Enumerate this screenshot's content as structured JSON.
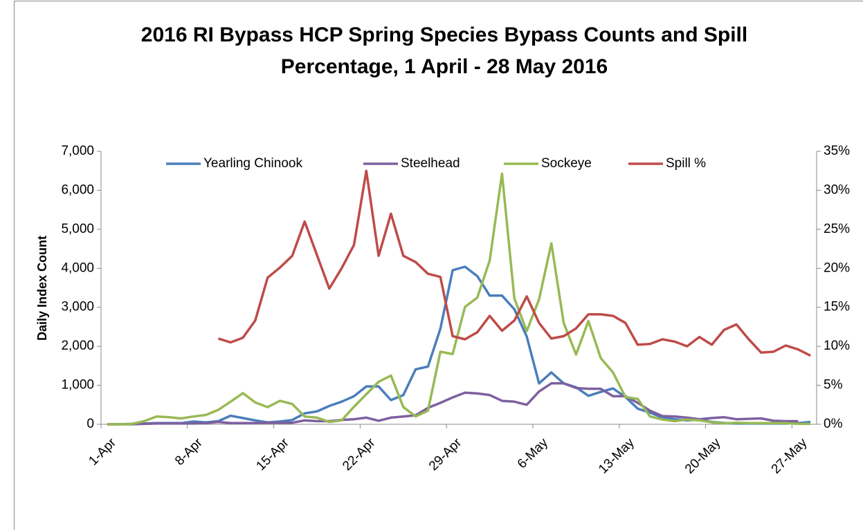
{
  "chart_data": {
    "type": "line",
    "title": "2016 RI Bypass HCP Spring Species Bypass Counts and Spill",
    "subtitle": "Percentage, 1 April - 28 May 2016",
    "y_label": "Daily Index Count",
    "categories": [
      "1-Apr",
      null,
      null,
      null,
      null,
      null,
      null,
      "8-Apr",
      null,
      null,
      null,
      null,
      null,
      null,
      "15-Apr",
      null,
      null,
      null,
      null,
      null,
      null,
      "22-Apr",
      null,
      null,
      null,
      null,
      null,
      null,
      "29-Apr",
      null,
      null,
      null,
      null,
      null,
      null,
      "6-May",
      null,
      null,
      null,
      null,
      null,
      null,
      "13-May",
      null,
      null,
      null,
      null,
      null,
      null,
      "20-May",
      null,
      null,
      null,
      null,
      null,
      null,
      "27-May",
      null
    ],
    "series": [
      {
        "name": "Yearling Chinook",
        "color": "#4a7ebb",
        "values": [
          0,
          0,
          10,
          20,
          30,
          30,
          30,
          70,
          50,
          80,
          220,
          160,
          100,
          50,
          70,
          110,
          280,
          330,
          470,
          580,
          720,
          970,
          970,
          620,
          750,
          1410,
          1480,
          2450,
          3950,
          4040,
          3800,
          3300,
          3300,
          2950,
          2250,
          1050,
          1330,
          1050,
          950,
          730,
          830,
          920,
          700,
          400,
          300,
          170,
          130,
          100,
          120,
          60,
          30,
          20,
          20,
          20,
          20,
          20,
          30,
          60
        ]
      },
      {
        "name": "Steelhead",
        "color": "#7d60a0",
        "values": [
          0,
          0,
          0,
          10,
          20,
          20,
          20,
          20,
          30,
          60,
          30,
          30,
          30,
          40,
          40,
          40,
          100,
          80,
          80,
          110,
          130,
          170,
          90,
          170,
          200,
          230,
          420,
          550,
          690,
          810,
          790,
          750,
          600,
          580,
          500,
          840,
          1050,
          1050,
          930,
          910,
          910,
          720,
          720,
          550,
          350,
          210,
          200,
          170,
          130,
          160,
          180,
          130,
          140,
          150,
          90,
          80,
          80,
          null
        ]
      },
      {
        "name": "Sockeye",
        "color": "#98b954",
        "values": [
          0,
          0,
          10,
          80,
          200,
          180,
          150,
          200,
          240,
          370,
          580,
          800,
          560,
          440,
          600,
          520,
          200,
          170,
          60,
          100,
          450,
          770,
          1090,
          1250,
          440,
          200,
          350,
          1860,
          1800,
          3010,
          3250,
          4200,
          6430,
          3230,
          2390,
          3200,
          4640,
          2600,
          1790,
          2650,
          1700,
          1330,
          700,
          650,
          200,
          120,
          80,
          120,
          100,
          50,
          20,
          40,
          30,
          30,
          30,
          30,
          10,
          10
        ]
      },
      {
        "name": "Spill %",
        "color": "#be4b48",
        "axis": "y2",
        "values": [
          null,
          null,
          null,
          null,
          null,
          null,
          null,
          null,
          null,
          11.0,
          10.5,
          11.1,
          13.3,
          18.8,
          20.1,
          21.6,
          26.0,
          21.7,
          17.4,
          20.0,
          23.0,
          32.5,
          21.6,
          27.0,
          21.6,
          20.8,
          19.3,
          18.9,
          11.3,
          10.9,
          11.8,
          13.9,
          12.0,
          13.3,
          16.4,
          13.0,
          11.0,
          11.3,
          12.3,
          14.1,
          14.1,
          13.9,
          13.0,
          10.2,
          10.3,
          10.9,
          10.6,
          10.0,
          11.2,
          10.2,
          12.1,
          12.8,
          10.9,
          9.2,
          9.3,
          10.1,
          9.6,
          8.8
        ]
      }
    ],
    "ylim": [
      0,
      7000
    ],
    "yticks": [
      0,
      {
        "value": 1000,
        "label": "1,000"
      },
      {
        "value": 2000,
        "label": "2,000"
      },
      {
        "value": 3000,
        "label": "3,000"
      },
      {
        "value": 4000,
        "label": "4,000"
      },
      {
        "value": 5000,
        "label": "5,000"
      },
      {
        "value": 6000,
        "label": "6,000"
      },
      {
        "value": 7000,
        "label": "7,000"
      }
    ],
    "y2lim": [
      0,
      35
    ],
    "y2ticks": [
      {
        "value": 0,
        "label": "0%"
      },
      {
        "value": 5,
        "label": "5%"
      },
      {
        "value": 10,
        "label": "10%"
      },
      {
        "value": 15,
        "label": "15%"
      },
      {
        "value": 20,
        "label": "20%"
      },
      {
        "value": 25,
        "label": "25%"
      },
      {
        "value": 30,
        "label": "30%"
      },
      {
        "value": 35,
        "label": "35%"
      }
    ],
    "grid": false,
    "legend": "top"
  }
}
